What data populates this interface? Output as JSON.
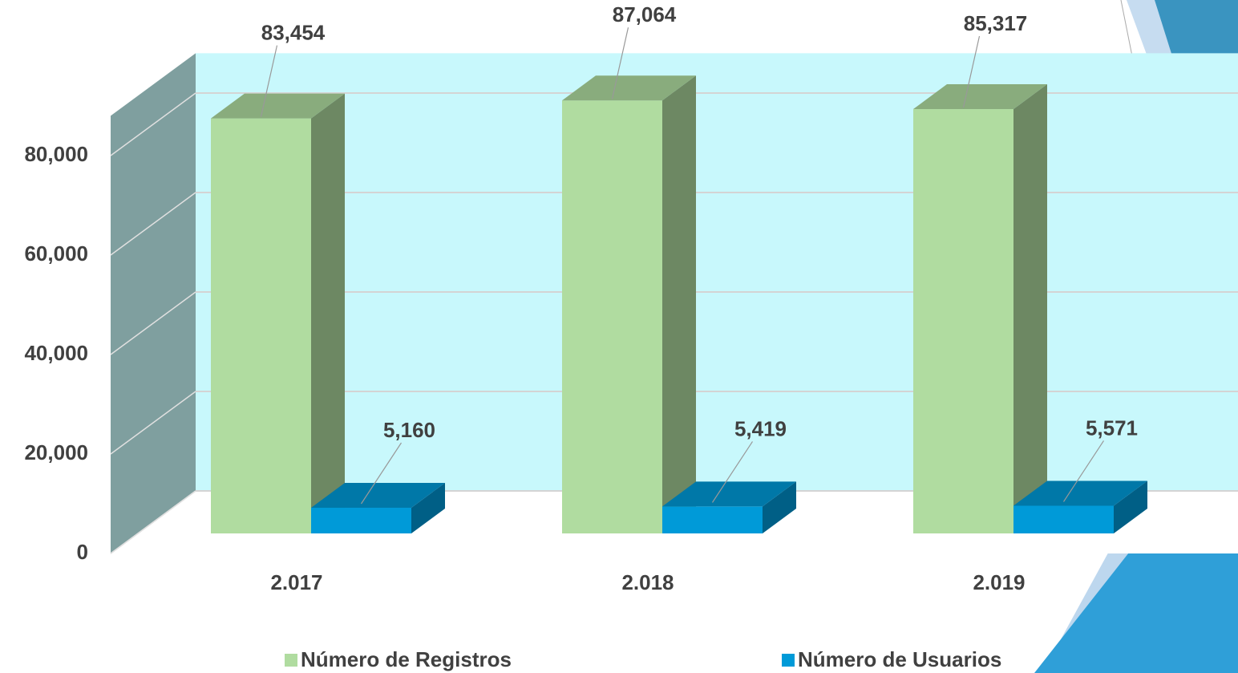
{
  "chart_data": {
    "type": "bar3d",
    "categories": [
      "2.017",
      "2.018",
      "2.019"
    ],
    "series": [
      {
        "name": "Número de Registros",
        "color": "#b0dca0",
        "values": [
          83454,
          87064,
          85317
        ],
        "value_labels": [
          "83,454",
          "87,064",
          "85,317"
        ]
      },
      {
        "name": "Número de Usuarios",
        "color": "#009ad8",
        "values": [
          5160,
          5419,
          5571
        ],
        "value_labels": [
          "5,160",
          "5,419",
          "5,571"
        ]
      }
    ],
    "ylim": [
      0,
      88000
    ],
    "yticks": [
      0,
      {
        "value": 20000,
        "label": "20,000"
      },
      {
        "value": 40000,
        "label": "40,000"
      },
      {
        "value": 60000,
        "label": "60,000"
      },
      {
        "value": 80000,
        "label": "80,000"
      }
    ],
    "grid": true,
    "legend": "bottom"
  }
}
